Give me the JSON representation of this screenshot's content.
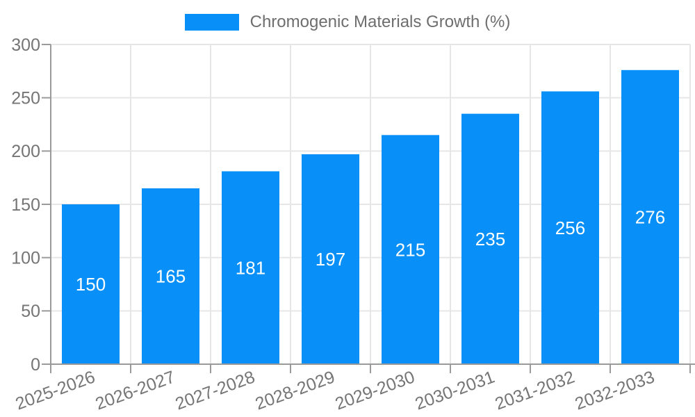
{
  "chart_data": {
    "type": "bar",
    "title": "Chromogenic Materials Growth (%)",
    "legend_position": "top",
    "categories": [
      "2025-2026",
      "2026-2027",
      "2027-2028",
      "2028-2029",
      "2029-2030",
      "2030-2031",
      "2031-2032",
      "2032-2033"
    ],
    "values": [
      150,
      165,
      181,
      197,
      215,
      235,
      256,
      276
    ],
    "xlabel": "",
    "ylabel": "",
    "ylim": [
      0,
      300
    ],
    "yticks": [
      0,
      50,
      100,
      150,
      200,
      250,
      300
    ],
    "grid": true,
    "x_label_rotation": -20,
    "bar_color": "#0890F8",
    "bar_label_color": "#FFFFFF",
    "axis_color": "#9A9A9A",
    "grid_color": "#E6E6E6",
    "tick_label_color": "#757575",
    "tick_font_size": 25,
    "bar_label_font_size": 26
  }
}
